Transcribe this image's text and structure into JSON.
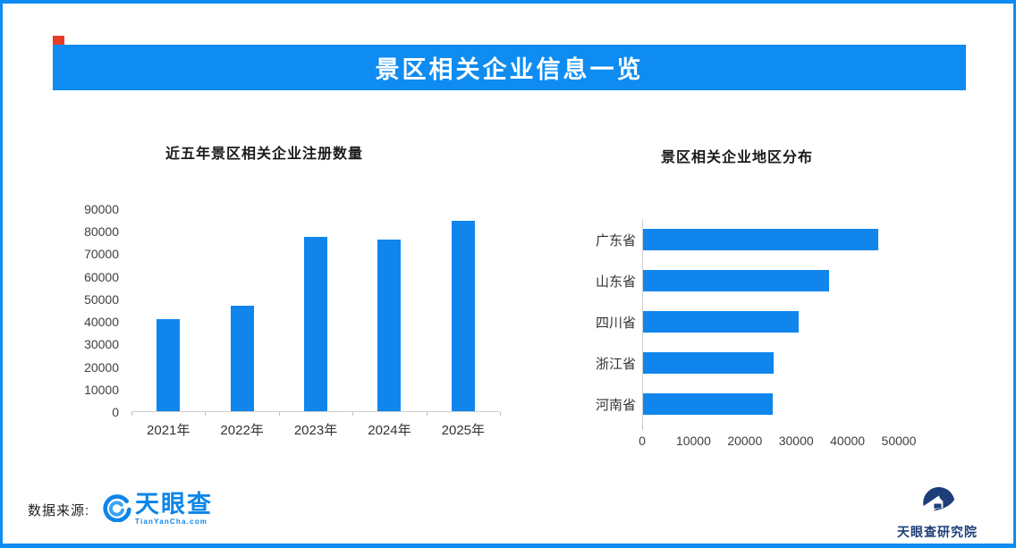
{
  "page": {
    "banner_title": "景区相关企业信息一览",
    "accent_color": "#0e8cf1",
    "bar_color": "#1086ec"
  },
  "footer": {
    "source_label": "数据来源:",
    "tianyancha_wordmark": "天眼查",
    "tianyancha_sub": "TianYanCha.com",
    "institute_name": "天眼查研究院"
  },
  "chart_data": [
    {
      "type": "bar",
      "orientation": "vertical",
      "title": "近五年景区相关企业注册数量",
      "categories": [
        "2021年",
        "2022年",
        "2023年",
        "2024年",
        "2025年"
      ],
      "values": [
        41000,
        47000,
        77500,
        76500,
        85000
      ],
      "ylabel": "",
      "xlabel": "",
      "ylim": [
        0,
        90000
      ],
      "y_ticks": [
        0,
        10000,
        20000,
        30000,
        40000,
        50000,
        60000,
        70000,
        80000,
        90000
      ],
      "grid": false,
      "legend": false,
      "bar_color": "#1086ec"
    },
    {
      "type": "bar",
      "orientation": "horizontal",
      "title": "景区相关企业地区分布",
      "categories": [
        "广东省",
        "山东省",
        "四川省",
        "浙江省",
        "河南省"
      ],
      "values": [
        45900,
        36300,
        30500,
        25600,
        25300
      ],
      "ylabel": "",
      "xlabel": "",
      "xlim": [
        0,
        50000
      ],
      "x_ticks": [
        0,
        10000,
        20000,
        30000,
        40000,
        50000
      ],
      "grid": false,
      "legend": false,
      "bar_color": "#1086ec"
    }
  ]
}
